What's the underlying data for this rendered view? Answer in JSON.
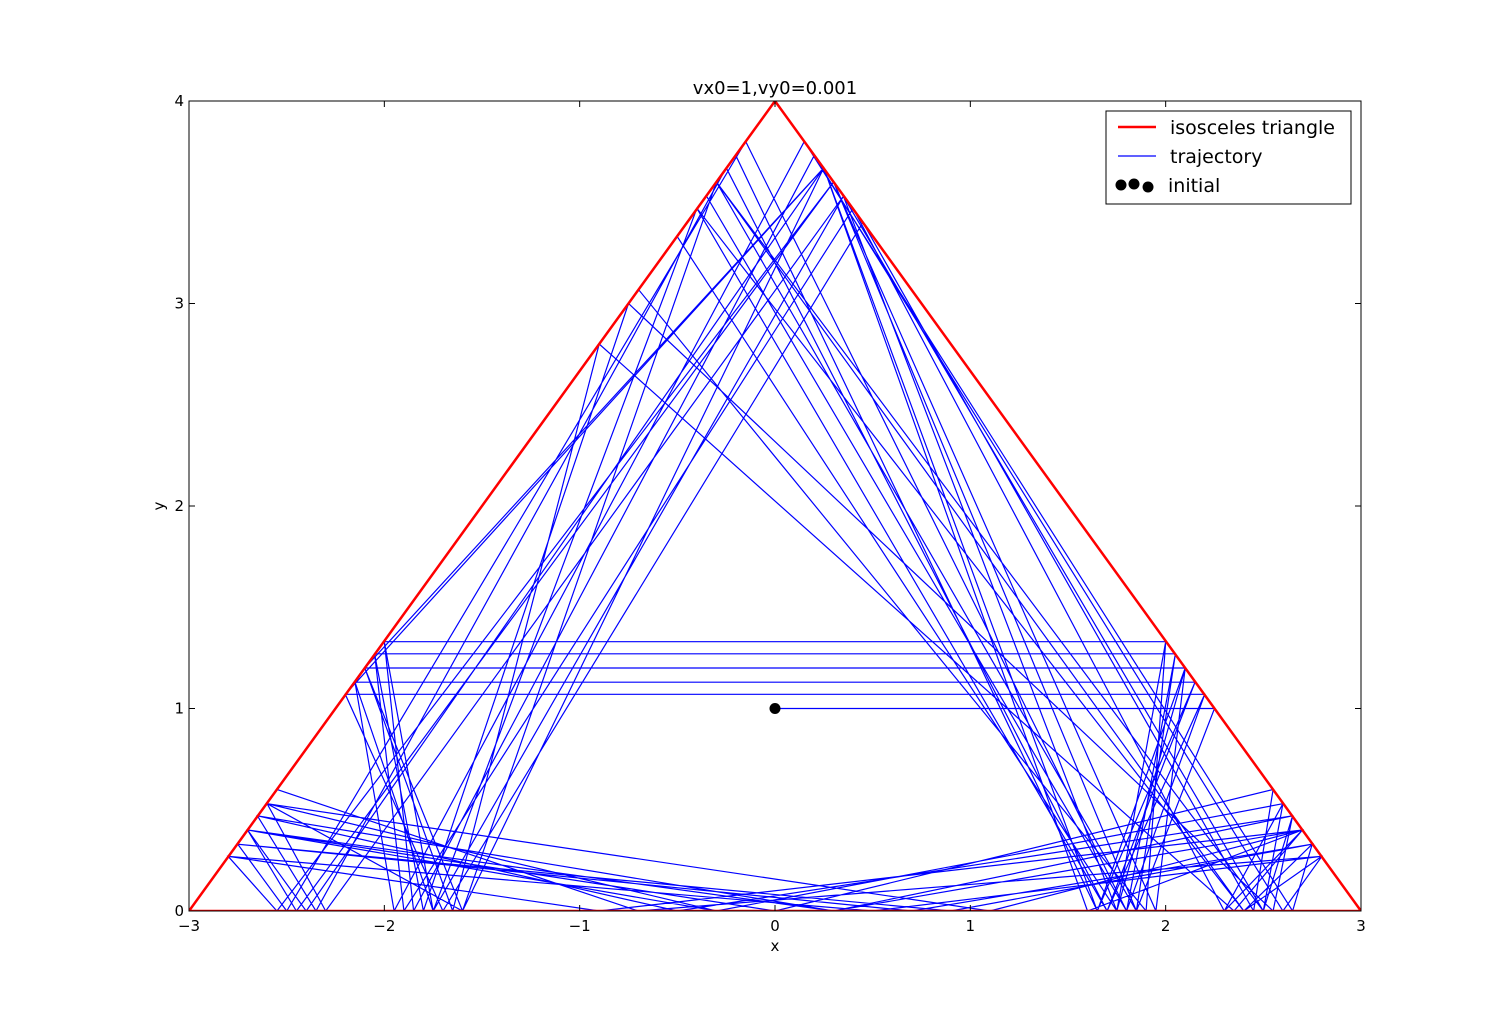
{
  "chart_data": {
    "type": "line",
    "title": "vx0=1,vy0=0.001",
    "xlabel": "x",
    "ylabel": "y",
    "xlim": [
      -3,
      3
    ],
    "ylim": [
      0,
      4
    ],
    "xticks": [
      -3,
      -2,
      -1,
      0,
      1,
      2,
      3
    ],
    "xtick_labels": [
      "−3",
      "−2",
      "−1",
      "0",
      "1",
      "2",
      "3"
    ],
    "yticks": [
      0,
      1,
      2,
      3,
      4
    ],
    "ytick_labels": [
      "0",
      "1",
      "2",
      "3",
      "4"
    ],
    "grid": false,
    "legend_position": "top-right",
    "series": [
      {
        "name": "isosceles triangle",
        "color": "#ff0000",
        "x": [
          -3,
          0,
          3,
          -3
        ],
        "y": [
          0,
          4,
          0,
          0
        ]
      },
      {
        "name": "trajectory",
        "color": "#0000ff",
        "bounces": [
          [
            0,
            1.0
          ],
          [
            2.25,
            1.0
          ],
          [
            1.85,
            0.0
          ],
          [
            -0.3,
            3.6
          ],
          [
            -2.6,
            0.53
          ],
          [
            1.1,
            0.0
          ],
          [
            2.7,
            0.4
          ],
          [
            1.6,
            0.0
          ],
          [
            0.25,
            3.67
          ],
          [
            -2.2,
            1.07
          ],
          [
            2.2,
            1.07
          ],
          [
            1.7,
            0.0
          ],
          [
            -0.4,
            3.47
          ],
          [
            -2.75,
            0.33
          ],
          [
            0.7,
            0.0
          ],
          [
            2.75,
            0.33
          ],
          [
            2.4,
            0.0
          ],
          [
            -0.3,
            3.6
          ],
          [
            -2.6,
            0.53
          ],
          [
            -1.6,
            0.0
          ],
          [
            0.25,
            3.67
          ],
          [
            -2.1,
            1.2
          ],
          [
            2.1,
            1.2
          ],
          [
            1.75,
            0.0
          ],
          [
            -0.5,
            3.33
          ],
          [
            -2.7,
            0.4
          ],
          [
            -0.3,
            0.0
          ],
          [
            2.6,
            0.53
          ],
          [
            2.3,
            0.0
          ],
          [
            0.4,
            3.47
          ],
          [
            -1.9,
            0.0
          ],
          [
            -2.05,
            1.27
          ],
          [
            2.05,
            1.27
          ],
          [
            1.8,
            0.0
          ],
          [
            -0.35,
            3.53
          ],
          [
            -2.65,
            0.47
          ],
          [
            0.3,
            0.0
          ],
          [
            2.65,
            0.47
          ],
          [
            2.5,
            0.0
          ],
          [
            0.35,
            3.53
          ],
          [
            -1.75,
            0.0
          ],
          [
            -2.15,
            1.13
          ],
          [
            2.15,
            1.13
          ],
          [
            1.65,
            0.0
          ],
          [
            -0.2,
            3.73
          ],
          [
            -2.55,
            0.6
          ],
          [
            -0.7,
            0.0
          ],
          [
            2.8,
            0.27
          ],
          [
            2.6,
            0.0
          ],
          [
            0.2,
            3.73
          ],
          [
            -1.85,
            0.0
          ],
          [
            -2.0,
            1.33
          ],
          [
            2.0,
            1.33
          ],
          [
            1.9,
            0.0
          ],
          [
            -0.7,
            3.07
          ],
          [
            -2.8,
            0.27
          ],
          [
            -0.9,
            0.0
          ],
          [
            2.7,
            0.4
          ],
          [
            2.35,
            0.0
          ],
          [
            -0.9,
            2.8
          ],
          [
            -1.65,
            0.0
          ],
          [
            -2.1,
            1.2
          ],
          [
            2.1,
            1.2
          ],
          [
            1.95,
            0.0
          ],
          [
            0.3,
            3.6
          ],
          [
            -2.45,
            0.0
          ],
          [
            -2.7,
            0.4
          ],
          [
            0.0,
            0.0
          ],
          [
            2.55,
            0.6
          ],
          [
            2.45,
            0.0
          ],
          [
            0.45,
            3.4
          ],
          [
            -1.7,
            0.0
          ],
          [
            -2.2,
            1.07
          ],
          [
            2.2,
            1.07
          ],
          [
            1.8,
            0.0
          ],
          [
            -0.15,
            3.8
          ],
          [
            -2.5,
            0.0
          ],
          [
            -2.75,
            0.33
          ],
          [
            0.9,
            0.0
          ],
          [
            2.75,
            0.33
          ],
          [
            2.65,
            0.0
          ],
          [
            0.15,
            3.8
          ],
          [
            -1.95,
            0.0
          ],
          [
            -2.15,
            1.13
          ],
          [
            2.15,
            1.13
          ],
          [
            1.7,
            0.0
          ],
          [
            -0.25,
            3.67
          ],
          [
            -2.35,
            0.0
          ],
          [
            -2.65,
            0.47
          ],
          [
            -0.5,
            0.0
          ],
          [
            2.65,
            0.47
          ],
          [
            2.55,
            0.0
          ],
          [
            -0.75,
            3.0
          ],
          [
            -1.8,
            0.0
          ],
          [
            -2.05,
            1.27
          ],
          [
            2.05,
            1.27
          ],
          [
            1.85,
            0.0
          ],
          [
            0.3,
            3.6
          ],
          [
            -2.55,
            0.0
          ],
          [
            -2.8,
            0.27
          ],
          [
            0.5,
            0.0
          ],
          [
            2.8,
            0.27
          ],
          [
            2.4,
            0.0
          ],
          [
            -0.4,
            3.47
          ],
          [
            -1.75,
            0.0
          ],
          [
            -2.0,
            1.33
          ],
          [
            2.0,
            1.33
          ],
          [
            1.75,
            0.0
          ],
          [
            0.35,
            3.53
          ],
          [
            -2.3,
            0.0
          ],
          [
            -2.6,
            0.53
          ],
          [
            -0.3,
            0.0
          ],
          [
            2.6,
            0.53
          ],
          [
            2.5,
            0.0
          ],
          [
            -0.3,
            3.6
          ],
          [
            -1.6,
            0.0
          ],
          [
            -2.1,
            1.2
          ],
          [
            2.1,
            1.2
          ],
          [
            1.65,
            0.0
          ],
          [
            0.25,
            3.67
          ],
          [
            -2.4,
            0.0
          ],
          [
            -2.7,
            0.4
          ],
          [
            0.3,
            0.0
          ],
          [
            2.7,
            0.4
          ],
          [
            2.3,
            0.0
          ]
        ]
      },
      {
        "name": "initial",
        "color": "#000000",
        "x": [
          0
        ],
        "y": [
          1
        ]
      }
    ]
  }
}
